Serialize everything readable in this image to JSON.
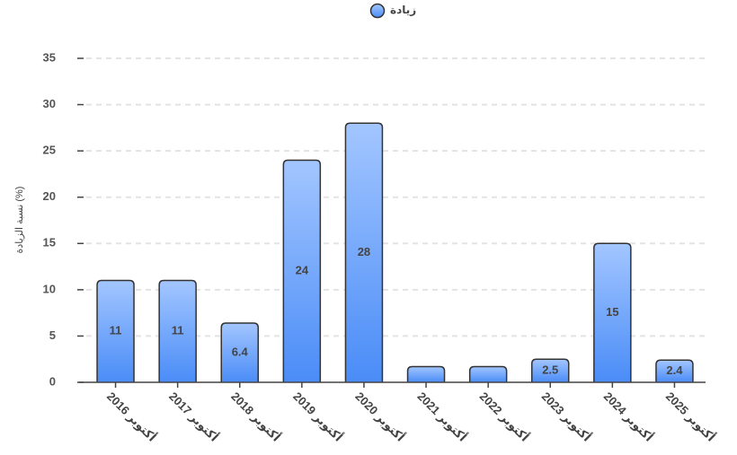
{
  "chart_data": {
    "type": "bar",
    "legend": "زيادة",
    "y_label": "نسبة الزيادة (%)",
    "categories": [
      "أكتوبر 2016",
      "أكتوبر 2017",
      "أكتوبر 2018",
      "أكتوبر 2019",
      "أكتوبر 2020",
      "أكتوبر 2021",
      "أكتوبر 2022",
      "أكتوبر 2023",
      "أكتوبر 2024",
      "أكتوبر 2025"
    ],
    "values": [
      11,
      11,
      6.4,
      24,
      28,
      1.7,
      1.7,
      2.5,
      15,
      2.4
    ],
    "value_labels": [
      "11",
      "11",
      "6.4",
      "24",
      "28",
      null,
      null,
      "2.5",
      "15",
      "2.4"
    ],
    "color": "#5b9bff",
    "ylim": [
      0,
      35
    ],
    "yticks": [
      0,
      5,
      10,
      15,
      20,
      25,
      30,
      35
    ],
    "grid": true
  }
}
